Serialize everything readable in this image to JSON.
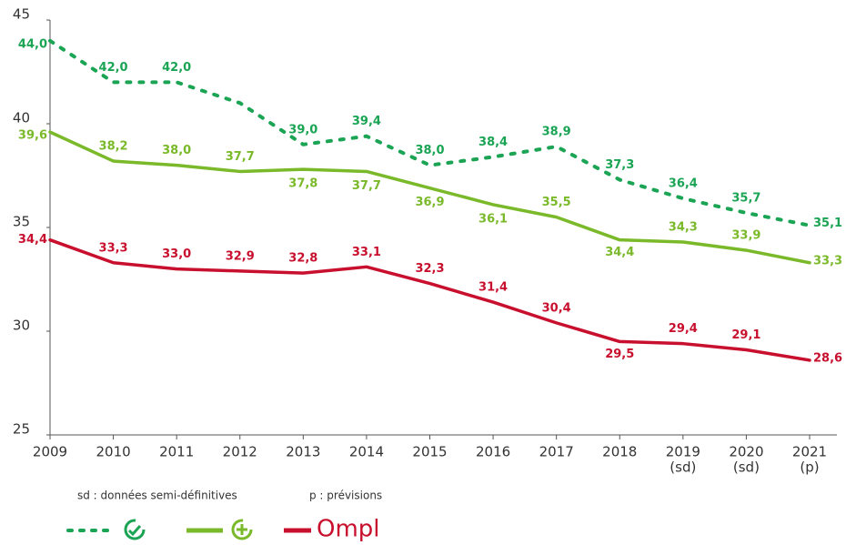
{
  "chart_data": {
    "type": "line",
    "categories": [
      "2009",
      "2010",
      "2011",
      "2012",
      "2013",
      "2014",
      "2015",
      "2016",
      "2017",
      "2018",
      "2019",
      "2020",
      "2021"
    ],
    "category_notes": [
      null,
      null,
      null,
      null,
      null,
      null,
      null,
      null,
      null,
      null,
      "(sd)",
      "(sd)",
      "(p)"
    ],
    "ylim": [
      25,
      45
    ],
    "yticks": [
      25,
      30,
      35,
      40,
      45
    ],
    "notes": [
      "sd : données semi-définitives",
      "p : prévisions"
    ],
    "series": [
      {
        "color": "#1aa454",
        "dash": true,
        "values": [
          44.0,
          42.0,
          42.0,
          41.0,
          39.0,
          39.4,
          38.0,
          38.4,
          38.9,
          37.3,
          36.4,
          35.7,
          35.1
        ],
        "value_labels": [
          "44,0",
          "42,0",
          "42,0",
          null,
          "39,0",
          "39,4",
          "38,0",
          "38,4",
          "38,9",
          "37,3",
          "36,4",
          "35,7",
          "35,1"
        ]
      },
      {
        "color": "#7ab929",
        "values": [
          39.6,
          38.2,
          38.0,
          37.7,
          37.8,
          37.7,
          36.9,
          36.1,
          35.5,
          34.4,
          34.3,
          33.9,
          33.3
        ],
        "value_labels": [
          "39,6",
          "38,2",
          "38,0",
          "37,7",
          "37,8",
          "37,7",
          "36,9",
          "36,1",
          "35,5",
          "34,4",
          "34,3",
          "33,9",
          "33,3"
        ]
      },
      {
        "name": "Ompl",
        "color": "#c8102e",
        "values": [
          34.4,
          33.3,
          33.0,
          32.9,
          32.8,
          33.1,
          32.3,
          31.4,
          30.4,
          29.5,
          29.4,
          29.1,
          28.6
        ],
        "value_labels": [
          "34,4",
          "33,3",
          "33,0",
          "32,9",
          "32,8",
          "33,1",
          "32,3",
          "31,4",
          "30,4",
          "29,5",
          "29,4",
          "29,1",
          "28,6"
        ]
      }
    ]
  }
}
